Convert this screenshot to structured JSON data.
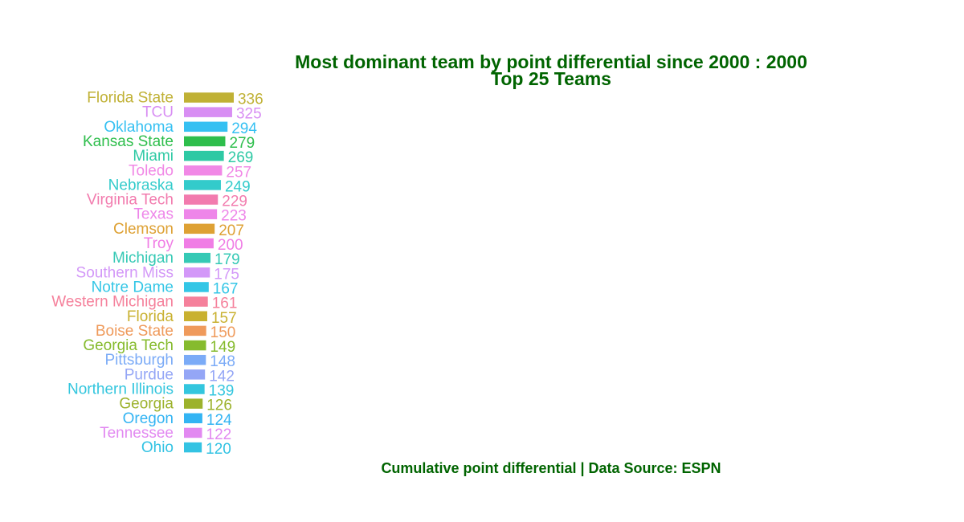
{
  "chart_data": {
    "type": "bar",
    "orientation": "horizontal",
    "title": "Most dominant team by point differential since 2000 : 2000",
    "subtitle": "Top 25 Teams",
    "caption": "Cumulative point differential | Data Source: ESPN",
    "title_color": "#006400",
    "grid": false,
    "legend": "none",
    "categories": [
      "Florida State",
      "TCU",
      "Oklahoma",
      "Kansas State",
      "Miami",
      "Toledo",
      "Nebraska",
      "Virginia Tech",
      "Texas",
      "Clemson",
      "Troy",
      "Michigan",
      "Southern Miss",
      "Notre Dame",
      "Western Michigan",
      "Florida",
      "Boise State",
      "Georgia Tech",
      "Pittsburgh",
      "Purdue",
      "Northern Illinois",
      "Georgia",
      "Oregon",
      "Tennessee",
      "Ohio"
    ],
    "values": [
      336,
      325,
      294,
      279,
      269,
      257,
      249,
      229,
      223,
      207,
      200,
      179,
      175,
      167,
      161,
      157,
      150,
      149,
      148,
      142,
      139,
      126,
      124,
      122,
      120
    ],
    "value_labels": [
      "336",
      "325",
      "294",
      "279",
      "269",
      "257",
      "249",
      "229",
      "223",
      "207",
      "200",
      "179",
      "175",
      "167",
      "161",
      "157",
      "150",
      "149",
      "148",
      "142",
      "139",
      "126",
      "124",
      "122",
      "120"
    ],
    "colors": [
      "#C0B135",
      "#D88EF3",
      "#35C0F2",
      "#2EBE4C",
      "#2EC9A4",
      "#F188E6",
      "#33CBCB",
      "#F27BAE",
      "#EE86E9",
      "#DEA134",
      "#F07DE5",
      "#35C9B5",
      "#D398F8",
      "#33C6E6",
      "#F5809B",
      "#C9B130",
      "#EF9A5B",
      "#86BB2E",
      "#7BABF7",
      "#94A6F6",
      "#33C6DE",
      "#9CB22C",
      "#33B4F3",
      "#E289F1",
      "#33C3E3"
    ]
  }
}
